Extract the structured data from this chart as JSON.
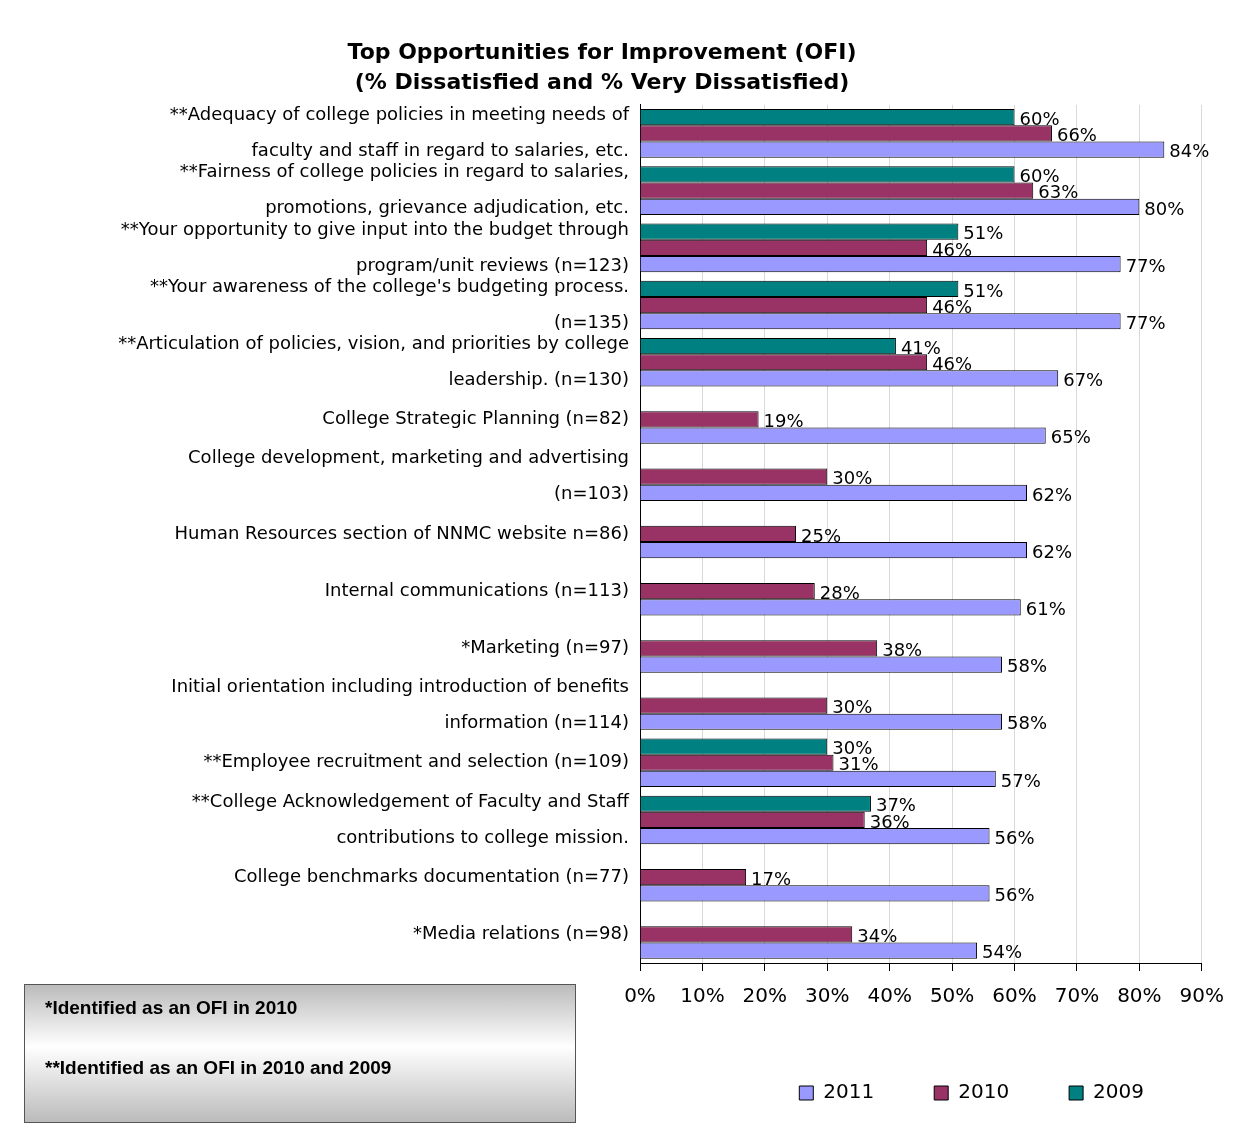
{
  "chart_data": {
    "type": "bar",
    "orientation": "horizontal",
    "title": "Top Opportunities for Improvement (OFI)",
    "subtitle": "(% Dissatisfied and % Very Dissatisfied)",
    "categories": [
      "**Adequacy of college policies in meeting needs of faculty and staff in regard to salaries, etc.",
      "**Fairness of college policies in regard to salaries, promotions, grievance adjudication, etc.",
      "**Your opportunity to give input into the budget through program/unit reviews (n=123)",
      "**Your awareness of the college's budgeting process. (n=135)",
      "**Articulation of policies, vision, and priorities by college leadership. (n=130)",
      "College Strategic Planning (n=82)",
      "College development, marketing and advertising (n=103)",
      "Human Resources section of NNMC website n=86)",
      "Internal communications (n=113)",
      "*Marketing (n=97)",
      "Initial orientation including introduction of benefits information (n=114)",
      "**Employee recruitment and selection (n=109)",
      "**College Acknowledgement of Faculty and Staff contributions to college mission.",
      "College benchmarks documentation (n=77)",
      "*Media relations (n=98)"
    ],
    "series": [
      {
        "name": "2009",
        "color": "#008080",
        "values": [
          60,
          60,
          51,
          51,
          41,
          null,
          null,
          null,
          null,
          null,
          null,
          30,
          37,
          null,
          null
        ],
        "value_labels": [
          "60%",
          "60%",
          "51%",
          "51%",
          "41%",
          null,
          null,
          null,
          null,
          null,
          null,
          "30%",
          "37%",
          null,
          null
        ]
      },
      {
        "name": "2010",
        "color": "#993366",
        "values": [
          66,
          63,
          46,
          46,
          46,
          19,
          30,
          25,
          28,
          38,
          30,
          31,
          36,
          17,
          34
        ],
        "value_labels": [
          "66%",
          "63%",
          "46%",
          "46%",
          "46%",
          "19%",
          "30%",
          "25%",
          "28%",
          "38%",
          "30%",
          "31%",
          "36%",
          "17%",
          "34%"
        ]
      },
      {
        "name": "2011",
        "color": "#9999ff",
        "values": [
          84,
          80,
          77,
          77,
          67,
          65,
          62,
          62,
          61,
          58,
          58,
          57,
          56,
          56,
          54
        ],
        "value_labels": [
          "84%",
          "80%",
          "77%",
          "77%",
          "67%",
          "65%",
          "62%",
          "62%",
          "61%",
          "58%",
          "58%",
          "57%",
          "56%",
          "56%",
          "54%"
        ]
      }
    ],
    "xlim": [
      0,
      90
    ],
    "xticks": [
      {
        "value": 0,
        "label": "0%"
      },
      {
        "value": 10,
        "label": "10%"
      },
      {
        "value": 20,
        "label": "20%"
      },
      {
        "value": 30,
        "label": "30%"
      },
      {
        "value": 40,
        "label": "40%"
      },
      {
        "value": 50,
        "label": "50%"
      },
      {
        "value": 60,
        "label": "60%"
      },
      {
        "value": 70,
        "label": "70%"
      },
      {
        "value": 80,
        "label": "80%"
      },
      {
        "value": 90,
        "label": "90%"
      }
    ],
    "grid": "x",
    "legend": "bottom",
    "annotations": [
      "*Identified as an OFI in 2010",
      "**Identified as an OFI in 2010 and 2009"
    ]
  }
}
